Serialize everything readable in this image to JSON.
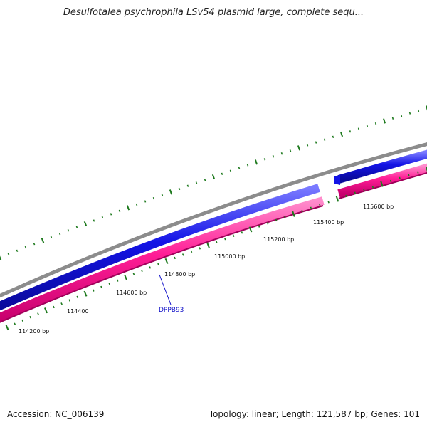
{
  "title": "Desulfotalea psychrophila LSv54 plasmid large, complete sequ...",
  "footer": {
    "accession": "Accession: NC_006139",
    "summary": "Topology: linear; Length: 121,587 bp; Genes: 101"
  },
  "scale": {
    "labels": [
      "114200 bp",
      "114400",
      "114600 bp",
      "114800 bp",
      "115000 bp",
      "115200 bp",
      "115400 bp",
      "115600 bp"
    ]
  },
  "genes": [
    {
      "name": "DPPB93"
    }
  ],
  "colors": {
    "backbone": "#8c8c8c",
    "forward_strand": "#1414e6",
    "reverse_strand": "#ff1e96",
    "reverse_edge": "#a0005a",
    "ticks": "#1e7a1e",
    "gene_label": "#1010c8"
  }
}
